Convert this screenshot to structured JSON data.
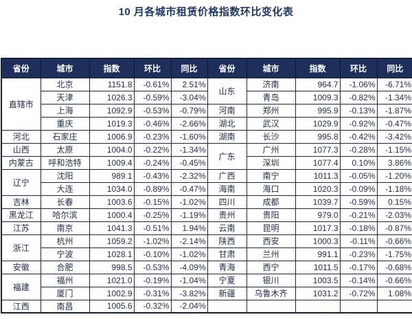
{
  "title": "10 月各城市租赁价格指数环比变化表",
  "colors": {
    "title_text": "#1f3864",
    "header_bg": "#1e2f5c",
    "header_text": "#ffffff",
    "border": "#1b2745",
    "body_text": "#222e4a"
  },
  "table": {
    "headers": [
      "省份",
      "城市",
      "指数",
      "环比",
      "同比",
      "省份",
      "城市",
      "指数",
      "环比",
      "同比"
    ],
    "left_rows": [
      {
        "province": "直辖市",
        "span": 4,
        "city": "北京",
        "index": "1151.8",
        "mom": "-0.61%",
        "yoy": "2.51%"
      },
      {
        "city": "天津",
        "index": "1026.3",
        "mom": "-0.59%",
        "yoy": "-3.04%"
      },
      {
        "city": "上海",
        "index": "1092.9",
        "mom": "-0.53%",
        "yoy": "-0.79%"
      },
      {
        "city": "重庆",
        "index": "1019.3",
        "mom": "-0.46%",
        "yoy": "-2.66%"
      },
      {
        "province": "河北",
        "span": 1,
        "city": "石家庄",
        "index": "1006.9",
        "mom": "-0.23%",
        "yoy": "-1.60%"
      },
      {
        "province": "山西",
        "span": 1,
        "city": "太原",
        "index": "1004.0",
        "mom": "-0.22%",
        "yoy": "-1.34%"
      },
      {
        "province": "内蒙古",
        "span": 1,
        "city": "呼和浩特",
        "index": "1009.4",
        "mom": "-0.24%",
        "yoy": "-0.45%"
      },
      {
        "province": "辽宁",
        "span": 2,
        "city": "沈阳",
        "index": "989.1",
        "mom": "-0.43%",
        "yoy": "-2.32%"
      },
      {
        "city": "大连",
        "index": "1034.0",
        "mom": "-0.89%",
        "yoy": "-0.47%"
      },
      {
        "province": "吉林",
        "span": 1,
        "city": "长春",
        "index": "1003.6",
        "mom": "-0.15%",
        "yoy": "-1.02%"
      },
      {
        "province": "黑龙江",
        "span": 1,
        "city": "哈尔滨",
        "index": "1000.4",
        "mom": "-0.25%",
        "yoy": "-1.19%"
      },
      {
        "province": "江苏",
        "span": 1,
        "city": "南京",
        "index": "1041.3",
        "mom": "-0.51%",
        "yoy": "1.94%"
      },
      {
        "province": "浙江",
        "span": 2,
        "city": "杭州",
        "index": "1059.2",
        "mom": "-1.02%",
        "yoy": "-2.14%"
      },
      {
        "city": "宁波",
        "index": "1028.1",
        "mom": "-0.10%",
        "yoy": "-1.02%"
      },
      {
        "province": "安徽",
        "span": 1,
        "city": "合肥",
        "index": "998.5",
        "mom": "-0.53%",
        "yoy": "-4.09%"
      },
      {
        "province": "福建",
        "span": 2,
        "city": "福州",
        "index": "1021.0",
        "mom": "-0.19%",
        "yoy": "-1.04%"
      },
      {
        "city": "厦门",
        "index": "1002.9",
        "mom": "-0.31%",
        "yoy": "-3.82%"
      },
      {
        "province": "江西",
        "span": 1,
        "city": "南昌",
        "index": "1005.6",
        "mom": "-0.32%",
        "yoy": "-2.04%"
      }
    ],
    "right_rows": [
      {
        "province": "山东",
        "span": 2,
        "city": "济南",
        "index": "964.7",
        "mom": "-1.06%",
        "yoy": "-6.71%"
      },
      {
        "city": "青岛",
        "index": "1009.3",
        "mom": "-0.82%",
        "yoy": "-1.34%"
      },
      {
        "province": "河南",
        "span": 1,
        "city": "郑州",
        "index": "995.9",
        "mom": "-0.13%",
        "yoy": "-1.87%"
      },
      {
        "province": "湖北",
        "span": 1,
        "city": "武汉",
        "index": "1029.9",
        "mom": "-0.92%",
        "yoy": "-0.47%"
      },
      {
        "province": "湖南",
        "span": 1,
        "city": "长沙",
        "index": "995.8",
        "mom": "-0.42%",
        "yoy": "-3.42%"
      },
      {
        "province": "广东",
        "span": 2,
        "city": "广州",
        "index": "1077.3",
        "mom": "-0.28%",
        "yoy": "-1.15%"
      },
      {
        "city": "深圳",
        "index": "1077.4",
        "mom": "0.10%",
        "yoy": "3.86%"
      },
      {
        "province": "广西",
        "span": 1,
        "city": "南宁",
        "index": "1011.3",
        "mom": "-0.05%",
        "yoy": "-1.20%"
      },
      {
        "province": "海南",
        "span": 1,
        "city": "海口",
        "index": "1020.3",
        "mom": "-0.09%",
        "yoy": "-1.18%"
      },
      {
        "province": "四川",
        "span": 1,
        "city": "成都",
        "index": "1039.7",
        "mom": "-0.59%",
        "yoy": "0.15%"
      },
      {
        "province": "贵州",
        "span": 1,
        "city": "贵阳",
        "index": "979.0",
        "mom": "-0.21%",
        "yoy": "-2.03%"
      },
      {
        "province": "云南",
        "span": 1,
        "city": "昆明",
        "index": "1017.3",
        "mom": "-0.18%",
        "yoy": "-0.87%"
      },
      {
        "province": "陕西",
        "span": 1,
        "city": "西安",
        "index": "1000.3",
        "mom": "-0.11%",
        "yoy": "-0.66%"
      },
      {
        "province": "甘肃",
        "span": 1,
        "city": "兰州",
        "index": "991.1",
        "mom": "-0.23%",
        "yoy": "-1.75%"
      },
      {
        "province": "青海",
        "span": 1,
        "city": "西宁",
        "index": "1011.5",
        "mom": "-0.17%",
        "yoy": "-0.68%"
      },
      {
        "province": "宁夏",
        "span": 1,
        "city": "银川",
        "index": "1003.5",
        "mom": "-0.14%",
        "yoy": "-0.66%"
      },
      {
        "province": "新疆",
        "span": 1,
        "city": "乌鲁木齐",
        "index": "1031.2",
        "mom": "-0.72%",
        "yoy": "1.08%"
      },
      {
        "province": "",
        "span": 1,
        "city": "",
        "index": "",
        "mom": "",
        "yoy": ""
      }
    ]
  },
  "chart_data": {
    "type": "table",
    "title": "10 月各城市租赁价格指数环比变化表",
    "columns": [
      "省份",
      "城市",
      "指数",
      "环比",
      "同比"
    ],
    "rows": [
      [
        "直辖市",
        "北京",
        1151.8,
        "-0.61%",
        "2.51%"
      ],
      [
        "直辖市",
        "天津",
        1026.3,
        "-0.59%",
        "-3.04%"
      ],
      [
        "直辖市",
        "上海",
        1092.9,
        "-0.53%",
        "-0.79%"
      ],
      [
        "直辖市",
        "重庆",
        1019.3,
        "-0.46%",
        "-2.66%"
      ],
      [
        "河北",
        "石家庄",
        1006.9,
        "-0.23%",
        "-1.60%"
      ],
      [
        "山西",
        "太原",
        1004.0,
        "-0.22%",
        "-1.34%"
      ],
      [
        "内蒙古",
        "呼和浩特",
        1009.4,
        "-0.24%",
        "-0.45%"
      ],
      [
        "辽宁",
        "沈阳",
        989.1,
        "-0.43%",
        "-2.32%"
      ],
      [
        "辽宁",
        "大连",
        1034.0,
        "-0.89%",
        "-0.47%"
      ],
      [
        "吉林",
        "长春",
        1003.6,
        "-0.15%",
        "-1.02%"
      ],
      [
        "黑龙江",
        "哈尔滨",
        1000.4,
        "-0.25%",
        "-1.19%"
      ],
      [
        "江苏",
        "南京",
        1041.3,
        "-0.51%",
        "1.94%"
      ],
      [
        "浙江",
        "杭州",
        1059.2,
        "-1.02%",
        "-2.14%"
      ],
      [
        "浙江",
        "宁波",
        1028.1,
        "-0.10%",
        "-1.02%"
      ],
      [
        "安徽",
        "合肥",
        998.5,
        "-0.53%",
        "-4.09%"
      ],
      [
        "福建",
        "福州",
        1021.0,
        "-0.19%",
        "-1.04%"
      ],
      [
        "福建",
        "厦门",
        1002.9,
        "-0.31%",
        "-3.82%"
      ],
      [
        "江西",
        "南昌",
        1005.6,
        "-0.32%",
        "-2.04%"
      ],
      [
        "山东",
        "济南",
        964.7,
        "-1.06%",
        "-6.71%"
      ],
      [
        "山东",
        "青岛",
        1009.3,
        "-0.82%",
        "-1.34%"
      ],
      [
        "河南",
        "郑州",
        995.9,
        "-0.13%",
        "-1.87%"
      ],
      [
        "湖北",
        "武汉",
        1029.9,
        "-0.92%",
        "-0.47%"
      ],
      [
        "湖南",
        "长沙",
        995.8,
        "-0.42%",
        "-3.42%"
      ],
      [
        "广东",
        "广州",
        1077.3,
        "-0.28%",
        "-1.15%"
      ],
      [
        "广东",
        "深圳",
        1077.4,
        "0.10%",
        "3.86%"
      ],
      [
        "广西",
        "南宁",
        1011.3,
        "-0.05%",
        "-1.20%"
      ],
      [
        "海南",
        "海口",
        1020.3,
        "-0.09%",
        "-1.18%"
      ],
      [
        "四川",
        "成都",
        1039.7,
        "-0.59%",
        "0.15%"
      ],
      [
        "贵州",
        "贵阳",
        979.0,
        "-0.21%",
        "-2.03%"
      ],
      [
        "云南",
        "昆明",
        1017.3,
        "-0.18%",
        "-0.87%"
      ],
      [
        "陕西",
        "西安",
        1000.3,
        "-0.11%",
        "-0.66%"
      ],
      [
        "甘肃",
        "兰州",
        991.1,
        "-0.23%",
        "-1.75%"
      ],
      [
        "青海",
        "西宁",
        1011.5,
        "-0.17%",
        "-0.68%"
      ],
      [
        "宁夏",
        "银川",
        1003.5,
        "-0.14%",
        "-0.66%"
      ],
      [
        "新疆",
        "乌鲁木齐",
        1031.2,
        "-0.72%",
        "1.08%"
      ]
    ]
  }
}
